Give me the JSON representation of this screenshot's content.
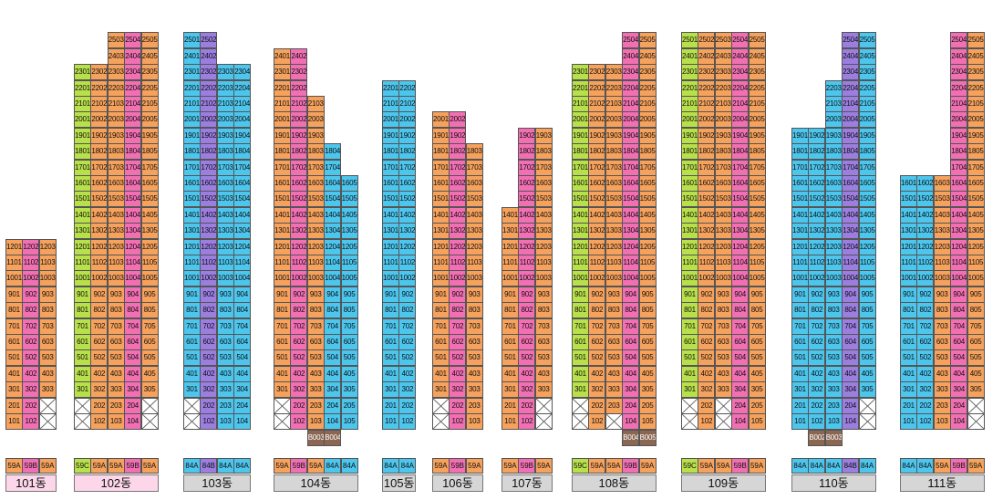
{
  "colors": {
    "59A": "#f6a25c",
    "59B": "#f26fb3",
    "59C": "#b8e04a",
    "84A": "#4dc6ee",
    "84B": "#9b7ee0",
    "empty": "#ffffff",
    "basement": "#8b6652",
    "label_pink": "#fdd6ea",
    "label_gray": "#d6d6d6"
  },
  "buildings": [
    {
      "name": "101동",
      "label_bg": "label_pink",
      "types": [
        "59A",
        "59B",
        "59A"
      ],
      "top_floor": [
        12,
        12,
        12
      ],
      "empty_floors": [
        [],
        [],
        [
          1,
          2
        ]
      ],
      "basement": []
    },
    {
      "name": "102동",
      "label_bg": "label_pink",
      "types": [
        "59C",
        "59A",
        "59A",
        "59B",
        "59A"
      ],
      "top_floor": [
        23,
        23,
        25,
        25,
        25
      ],
      "empty_floors": [
        [
          1,
          2
        ],
        [],
        [],
        [],
        [
          1,
          2
        ]
      ],
      "basement": []
    },
    {
      "name": "103동",
      "label_bg": "label_gray",
      "types": [
        "84A",
        "84B",
        "84A",
        "84A"
      ],
      "top_floor": [
        25,
        25,
        23,
        23
      ],
      "empty_floors": [
        [
          1,
          2
        ],
        [],
        [],
        []
      ],
      "basement": []
    },
    {
      "name": "104동",
      "label_bg": "label_gray",
      "types": [
        "59A",
        "59B",
        "59A",
        "84A",
        "84A"
      ],
      "top_floor": [
        24,
        24,
        21,
        18,
        16
      ],
      "empty_floors": [
        [
          1,
          2
        ],
        [],
        [],
        [],
        []
      ],
      "basement": [
        {
          "col": 2,
          "label": "B003"
        },
        {
          "col": 3,
          "label": "B004"
        }
      ]
    },
    {
      "name": "105동",
      "label_bg": "label_gray",
      "types": [
        "84A",
        "84A"
      ],
      "top_floor": [
        22,
        22
      ],
      "empty_floors": [
        [],
        []
      ],
      "basement": []
    },
    {
      "name": "106동",
      "label_bg": "label_gray",
      "types": [
        "59A",
        "59B",
        "59A"
      ],
      "top_floor": [
        20,
        20,
        18
      ],
      "empty_floors": [
        [
          1,
          2
        ],
        [],
        []
      ],
      "basement": []
    },
    {
      "name": "107동",
      "label_bg": "label_gray",
      "types": [
        "59A",
        "59B",
        "59A"
      ],
      "top_floor": [
        14,
        19,
        19
      ],
      "empty_floors": [
        [],
        [],
        [
          1,
          2
        ]
      ],
      "basement": []
    },
    {
      "name": "108동",
      "label_bg": "label_gray",
      "types": [
        "59C",
        "59A",
        "59A",
        "59B",
        "59A"
      ],
      "top_floor": [
        23,
        23,
        23,
        25,
        25
      ],
      "empty_floors": [
        [
          1,
          2
        ],
        [],
        [
          1
        ],
        [],
        []
      ],
      "basement": [
        {
          "col": 3,
          "label": "B004"
        },
        {
          "col": 4,
          "label": "B005"
        }
      ]
    },
    {
      "name": "109동",
      "label_bg": "label_gray",
      "types": [
        "59C",
        "59A",
        "59A",
        "59B",
        "59A"
      ],
      "top_floor": [
        25,
        25,
        25,
        25,
        25
      ],
      "empty_floors": [
        [
          1,
          2
        ],
        [],
        [
          1,
          2
        ],
        [],
        []
      ],
      "basement": []
    },
    {
      "name": "110동",
      "label_bg": "label_gray",
      "types": [
        "84A",
        "84A",
        "84A",
        "84B",
        "84A"
      ],
      "top_floor": [
        19,
        19,
        22,
        25,
        25
      ],
      "empty_floors": [
        [],
        [],
        [],
        [],
        [
          1,
          2
        ]
      ],
      "basement": [
        {
          "col": 1,
          "label": "B002"
        },
        {
          "col": 2,
          "label": "B003"
        }
      ]
    },
    {
      "name": "111동",
      "label_bg": "label_gray",
      "types": [
        "84A",
        "84A",
        "59A",
        "59B",
        "59A"
      ],
      "top_floor": [
        16,
        16,
        16,
        25,
        25
      ],
      "empty_floors": [
        [],
        [],
        [],
        [],
        [
          1,
          2
        ]
      ],
      "basement": []
    }
  ]
}
